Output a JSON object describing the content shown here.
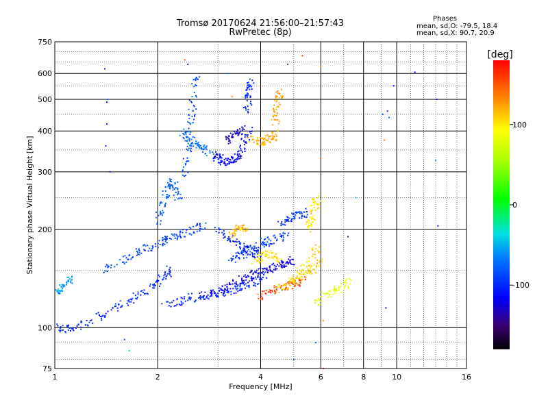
{
  "chart_data": {
    "type": "scatter",
    "title": "Tromsø 20170624 21:56:00–21:57:43",
    "subtitle": "RwPretec (8p)",
    "xlabel": "Frequency [MHz]",
    "ylabel": "Stationary phase Virtual Height [km]",
    "x_scale": "log",
    "y_scale": "log",
    "xlim": [
      1,
      16
    ],
    "ylim": [
      75,
      750
    ],
    "x_ticks": [
      1,
      2,
      4,
      6,
      8,
      10,
      16
    ],
    "y_ticks": [
      75,
      100,
      200,
      300,
      400,
      500,
      600,
      750
    ],
    "grid_major_x": [
      2,
      4,
      6,
      8,
      10
    ],
    "grid_major_y": [
      100,
      200,
      300,
      400,
      500,
      600
    ],
    "phases": {
      "heading": "Phases",
      "o_stats": "mean, sd,O: -79.5, 18.4",
      "x_stats": "mean, sd,X:  90.7, 20.9"
    },
    "colorbar": {
      "label": "[deg]",
      "range": [
        -180,
        180
      ],
      "ticks": [
        100,
        0,
        -100
      ]
    },
    "traces": [
      {
        "x": [
          1.0,
          1.08,
          1.15,
          1.25,
          1.4,
          1.55,
          1.7,
          1.85,
          2.0,
          2.1,
          2.2
        ],
        "y": [
          100,
          99,
          100,
          104,
          110,
          116,
          123,
          130,
          138,
          145,
          152
        ],
        "phase": -100
      },
      {
        "x": [
          1.02,
          1.05,
          1.08,
          1.12
        ],
        "y": [
          128,
          132,
          136,
          140
        ],
        "phase": -55
      },
      {
        "x": [
          1.4,
          1.55,
          1.7,
          1.85,
          2.0,
          2.1,
          2.25,
          2.4,
          2.55,
          2.7
        ],
        "y": [
          150,
          160,
          168,
          175,
          180,
          185,
          190,
          195,
          200,
          205
        ],
        "phase": -90
      },
      {
        "x": [
          2.0,
          2.05,
          2.1,
          2.15,
          2.2,
          2.25,
          2.3
        ],
        "y": [
          210,
          228,
          250,
          268,
          282,
          270,
          248
        ],
        "phase": -80
      },
      {
        "x": [
          2.4,
          2.45,
          2.5,
          2.52,
          2.55,
          2.6
        ],
        "y": [
          290,
          330,
          380,
          450,
          520,
          590
        ],
        "phase": -85
      },
      {
        "x": [
          2.35,
          2.45,
          2.55,
          2.65,
          2.75,
          2.85
        ],
        "y": [
          400,
          385,
          370,
          360,
          350,
          345
        ],
        "phase": -70
      },
      {
        "x": [
          2.9,
          3.0,
          3.1,
          3.2,
          3.3,
          3.4,
          3.5,
          3.6,
          3.7
        ],
        "y": [
          340,
          330,
          325,
          322,
          325,
          332,
          345,
          370,
          410
        ],
        "phase": -115
      },
      {
        "x": [
          3.2,
          3.3,
          3.4,
          3.5
        ],
        "y": [
          370,
          385,
          395,
          400
        ],
        "phase": -128
      },
      {
        "x": [
          3.65,
          3.68,
          3.72,
          3.75
        ],
        "y": [
          450,
          500,
          540,
          560
        ],
        "phase": -100
      },
      {
        "x": [
          3.75,
          3.9,
          4.05,
          4.2,
          4.35,
          4.45
        ],
        "y": [
          380,
          372,
          370,
          375,
          385,
          395
        ],
        "phase": 120
      },
      {
        "x": [
          4.4,
          4.45,
          4.5,
          4.55
        ],
        "y": [
          420,
          460,
          500,
          525
        ],
        "phase": 125
      },
      {
        "x": [
          2.1,
          2.3,
          2.5,
          2.7,
          2.9,
          3.1,
          3.3,
          3.5,
          3.7,
          3.9,
          4.1
        ],
        "y": [
          118,
          120,
          123,
          125,
          127,
          128,
          130,
          133,
          136,
          140,
          145
        ],
        "phase": -100
      },
      {
        "x": [
          2.8,
          3.0,
          3.2,
          3.4,
          3.6,
          3.8,
          4.0,
          4.2,
          4.4,
          4.6,
          4.8,
          5.0
        ],
        "y": [
          125,
          130,
          134,
          138,
          142,
          146,
          148,
          150,
          153,
          156,
          158,
          160
        ],
        "phase": -120
      },
      {
        "x": [
          3.2,
          3.4,
          3.6,
          3.8,
          4.0,
          4.2,
          4.5,
          4.8
        ],
        "y": [
          160,
          165,
          170,
          175,
          180,
          184,
          188,
          192
        ],
        "phase": -90
      },
      {
        "x": [
          3.0,
          3.2,
          3.4,
          3.6,
          3.8,
          4.0
        ],
        "y": [
          200,
          190,
          182,
          175,
          170,
          168
        ],
        "phase": -105
      },
      {
        "x": [
          3.3,
          3.4,
          3.5,
          3.6
        ],
        "y": [
          190,
          200,
          205,
          198
        ],
        "phase": 115
      },
      {
        "x": [
          4.0,
          4.2,
          4.5,
          4.8,
          5.1,
          5.4
        ],
        "y": [
          125,
          128,
          131,
          134,
          137,
          140
        ],
        "phase": 155
      },
      {
        "x": [
          4.5,
          4.8,
          5.1,
          5.4,
          5.7,
          6.0
        ],
        "y": [
          130,
          135,
          140,
          145,
          152,
          160
        ],
        "phase": 110
      },
      {
        "x": [
          5.0,
          5.3,
          5.6,
          5.9
        ],
        "y": [
          140,
          150,
          165,
          180
        ],
        "phase": 105
      },
      {
        "x": [
          5.5,
          5.6,
          5.7,
          5.8,
          5.9
        ],
        "y": [
          200,
          210,
          225,
          240,
          250
        ],
        "phase": 100
      },
      {
        "x": [
          5.8,
          6.2,
          6.6,
          7.0,
          7.2
        ],
        "y": [
          120,
          125,
          130,
          135,
          138
        ],
        "phase": 85
      },
      {
        "x": [
          3.8,
          4.0,
          4.2,
          4.4,
          4.6
        ],
        "y": [
          160,
          165,
          170,
          165,
          160
        ],
        "phase": 100
      },
      {
        "x": [
          4.6,
          4.8,
          5.0,
          5.2,
          5.4
        ],
        "y": [
          210,
          215,
          220,
          222,
          225
        ],
        "phase": -95
      }
    ],
    "scatter_outliers": [
      {
        "x": 1.4,
        "y": 620,
        "phase": -100
      },
      {
        "x": 1.42,
        "y": 490,
        "phase": -105
      },
      {
        "x": 1.42,
        "y": 420,
        "phase": -100
      },
      {
        "x": 1.41,
        "y": 360,
        "phase": -100
      },
      {
        "x": 1.43,
        "y": 500,
        "phase": -75
      },
      {
        "x": 1.45,
        "y": 300,
        "phase": -100
      },
      {
        "x": 1.6,
        "y": 92,
        "phase": -85
      },
      {
        "x": 1.65,
        "y": 85,
        "phase": -40
      },
      {
        "x": 2.4,
        "y": 660,
        "phase": 155
      },
      {
        "x": 2.45,
        "y": 640,
        "phase": -110
      },
      {
        "x": 3.2,
        "y": 600,
        "phase": -60
      },
      {
        "x": 3.3,
        "y": 510,
        "phase": 130
      },
      {
        "x": 4.8,
        "y": 640,
        "phase": -100
      },
      {
        "x": 5.3,
        "y": 680,
        "phase": 165
      },
      {
        "x": 6.0,
        "y": 630,
        "phase": 140
      },
      {
        "x": 6.0,
        "y": 330,
        "phase": 150
      },
      {
        "x": 5.0,
        "y": 80,
        "phase": -95
      },
      {
        "x": 5.8,
        "y": 90,
        "phase": -90
      },
      {
        "x": 6.1,
        "y": 105,
        "phase": 130
      },
      {
        "x": 6.1,
        "y": 75,
        "phase": 150
      },
      {
        "x": 7.2,
        "y": 190,
        "phase": -140
      },
      {
        "x": 7.6,
        "y": 250,
        "phase": -40
      },
      {
        "x": 9.1,
        "y": 450,
        "phase": -90
      },
      {
        "x": 9.4,
        "y": 460,
        "phase": -100
      },
      {
        "x": 9.5,
        "y": 440,
        "phase": -70
      },
      {
        "x": 9.8,
        "y": 550,
        "phase": -110
      },
      {
        "x": 9.2,
        "y": 375,
        "phase": 145
      },
      {
        "x": 9.3,
        "y": 115,
        "phase": -110
      },
      {
        "x": 11.3,
        "y": 605,
        "phase": -120
      },
      {
        "x": 13.1,
        "y": 500,
        "phase": -110
      },
      {
        "x": 13.0,
        "y": 325,
        "phase": -50
      },
      {
        "x": 13.2,
        "y": 205,
        "phase": -120
      }
    ]
  }
}
